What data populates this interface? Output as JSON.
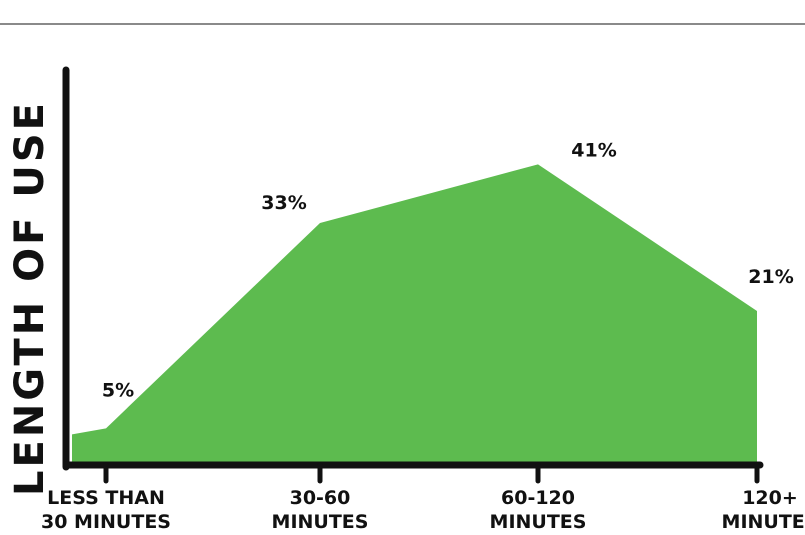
{
  "colors": {
    "area": "#5dbb4f",
    "axis": "#111111",
    "top_rule": "#8a8a8a",
    "text": "#111111"
  },
  "chart_data": {
    "type": "area",
    "title": "",
    "ylabel": "LENGTH OF USE",
    "xlabel": "",
    "ylim": [
      0,
      45
    ],
    "grid": false,
    "legend": "none",
    "categories": [
      [
        "LESS THAN",
        "30 MINUTES"
      ],
      [
        "30-60",
        "MINUTES"
      ],
      [
        "60-120",
        "MINUTES"
      ],
      [
        "120+",
        "MINUTES"
      ]
    ],
    "values": [
      5,
      33,
      41,
      21
    ],
    "data_labels": [
      "5%",
      "33%",
      "41%",
      "21%"
    ]
  }
}
